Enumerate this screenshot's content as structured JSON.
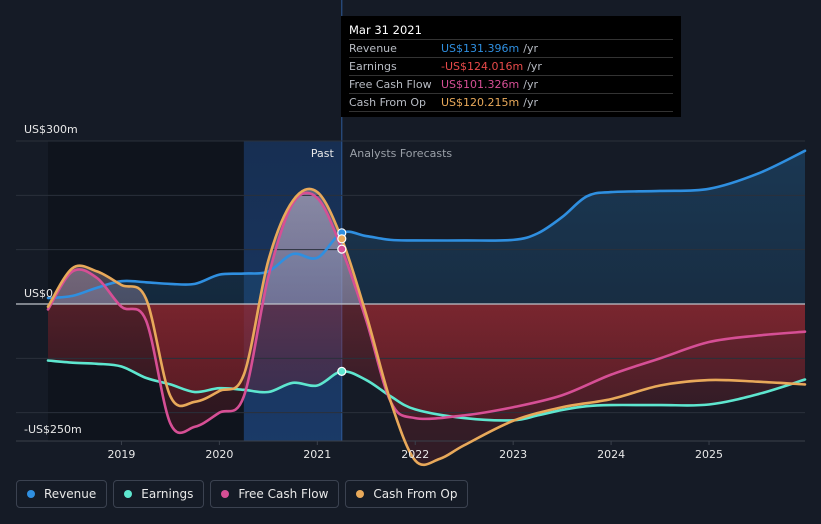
{
  "chart_data": {
    "type": "line",
    "title": "",
    "ylim": [
      -250,
      300
    ],
    "y_tick_labels": [
      {
        "value": 300,
        "label": "US$300m"
      },
      {
        "value": 0,
        "label": "US$0"
      },
      {
        "value": -250,
        "label": "-US$250m"
      }
    ],
    "x_ticks": [
      {
        "value": 2019,
        "label": "2019"
      },
      {
        "value": 2020,
        "label": "2020"
      },
      {
        "value": 2021,
        "label": "2021"
      },
      {
        "value": 2022,
        "label": "2022"
      },
      {
        "value": 2023,
        "label": "2023"
      },
      {
        "value": 2024,
        "label": "2024"
      },
      {
        "value": 2025,
        "label": "2025"
      }
    ],
    "xlim": [
      2018.25,
      2025.98
    ],
    "past_label": "Past",
    "forecast_label": "Analysts Forecasts",
    "past_highlight_start": 2020.25,
    "divider_x": 2021.25,
    "series": [
      {
        "name": "Revenue",
        "color": "#2f8fe0",
        "points": [
          [
            2018.25,
            11
          ],
          [
            2018.5,
            15
          ],
          [
            2018.75,
            30
          ],
          [
            2019.0,
            42
          ],
          [
            2019.25,
            40
          ],
          [
            2019.5,
            37
          ],
          [
            2019.75,
            37
          ],
          [
            2020.0,
            54
          ],
          [
            2020.25,
            56
          ],
          [
            2020.5,
            60
          ],
          [
            2020.75,
            92
          ],
          [
            2021.0,
            85
          ],
          [
            2021.25,
            131
          ],
          [
            2021.5,
            125
          ],
          [
            2021.75,
            118
          ],
          [
            2022.0,
            117
          ],
          [
            2022.5,
            117
          ],
          [
            2023.0,
            118
          ],
          [
            2023.25,
            130
          ],
          [
            2023.5,
            160
          ],
          [
            2023.75,
            198
          ],
          [
            2024.0,
            206
          ],
          [
            2024.5,
            208
          ],
          [
            2025.0,
            212
          ],
          [
            2025.5,
            240
          ],
          [
            2025.98,
            282
          ]
        ]
      },
      {
        "name": "Earnings",
        "color": "#5ee6cf",
        "points": [
          [
            2018.25,
            -104
          ],
          [
            2018.5,
            -108
          ],
          [
            2018.75,
            -110
          ],
          [
            2019.0,
            -115
          ],
          [
            2019.25,
            -136
          ],
          [
            2019.5,
            -148
          ],
          [
            2019.75,
            -162
          ],
          [
            2020.0,
            -155
          ],
          [
            2020.25,
            -158
          ],
          [
            2020.5,
            -162
          ],
          [
            2020.75,
            -145
          ],
          [
            2021.0,
            -150
          ],
          [
            2021.25,
            -124
          ],
          [
            2021.5,
            -140
          ],
          [
            2021.75,
            -170
          ],
          [
            2022.0,
            -194
          ],
          [
            2022.5,
            -210
          ],
          [
            2023.0,
            -214
          ],
          [
            2023.25,
            -205
          ],
          [
            2023.5,
            -195
          ],
          [
            2023.75,
            -188
          ],
          [
            2024.0,
            -186
          ],
          [
            2024.5,
            -186
          ],
          [
            2025.0,
            -185
          ],
          [
            2025.5,
            -166
          ],
          [
            2025.98,
            -139
          ]
        ]
      },
      {
        "name": "Free Cash Flow",
        "color": "#d64f95",
        "points": [
          [
            2018.25,
            -10
          ],
          [
            2018.5,
            60
          ],
          [
            2018.75,
            48
          ],
          [
            2019.0,
            -5
          ],
          [
            2019.25,
            -30
          ],
          [
            2019.5,
            -220
          ],
          [
            2019.75,
            -226
          ],
          [
            2020.0,
            -200
          ],
          [
            2020.25,
            -170
          ],
          [
            2020.5,
            50
          ],
          [
            2020.75,
            185
          ],
          [
            2021.0,
            195
          ],
          [
            2021.25,
            101
          ],
          [
            2021.5,
            -30
          ],
          [
            2021.75,
            -180
          ],
          [
            2022.0,
            -210
          ],
          [
            2022.5,
            -205
          ],
          [
            2023.0,
            -190
          ],
          [
            2023.5,
            -168
          ],
          [
            2024.0,
            -130
          ],
          [
            2024.5,
            -100
          ],
          [
            2025.0,
            -70
          ],
          [
            2025.5,
            -58
          ],
          [
            2025.98,
            -51
          ]
        ]
      },
      {
        "name": "Cash From Op",
        "color": "#e8a95a",
        "points": [
          [
            2018.25,
            -5
          ],
          [
            2018.5,
            66
          ],
          [
            2018.75,
            60
          ],
          [
            2019.0,
            35
          ],
          [
            2019.25,
            10
          ],
          [
            2019.5,
            -170
          ],
          [
            2019.75,
            -180
          ],
          [
            2020.0,
            -160
          ],
          [
            2020.25,
            -130
          ],
          [
            2020.5,
            80
          ],
          [
            2020.75,
            190
          ],
          [
            2021.0,
            206
          ],
          [
            2021.25,
            120
          ],
          [
            2021.5,
            -20
          ],
          [
            2021.75,
            -180
          ],
          [
            2022.0,
            -288
          ],
          [
            2022.25,
            -285
          ],
          [
            2022.5,
            -260
          ],
          [
            2023.0,
            -215
          ],
          [
            2023.5,
            -190
          ],
          [
            2024.0,
            -175
          ],
          [
            2024.5,
            -150
          ],
          [
            2025.0,
            -140
          ],
          [
            2025.5,
            -143
          ],
          [
            2025.98,
            -148
          ]
        ]
      }
    ],
    "tooltip_markers": [
      {
        "series": "Revenue",
        "value": 131
      },
      {
        "series": "Cash From Op",
        "value": 120
      },
      {
        "series": "Free Cash Flow",
        "value": 101
      },
      {
        "series": "Earnings",
        "value": -124
      }
    ]
  },
  "tooltip": {
    "date": "Mar 31 2021",
    "rows": [
      {
        "label": "Revenue",
        "value": "US$131.396m",
        "unit": "/yr",
        "color": "#2f8fe0"
      },
      {
        "label": "Earnings",
        "value": "-US$124.016m",
        "unit": "/yr",
        "color": "#e84a4a"
      },
      {
        "label": "Free Cash Flow",
        "value": "US$101.326m",
        "unit": "/yr",
        "color": "#d64f95"
      },
      {
        "label": "Cash From Op",
        "value": "US$120.215m",
        "unit": "/yr",
        "color": "#e8a95a"
      }
    ]
  },
  "legend": [
    {
      "label": "Revenue",
      "color": "#2f8fe0"
    },
    {
      "label": "Earnings",
      "color": "#5ee6cf"
    },
    {
      "label": "Free Cash Flow",
      "color": "#d64f95"
    },
    {
      "label": "Cash From Op",
      "color": "#e8a95a"
    }
  ]
}
